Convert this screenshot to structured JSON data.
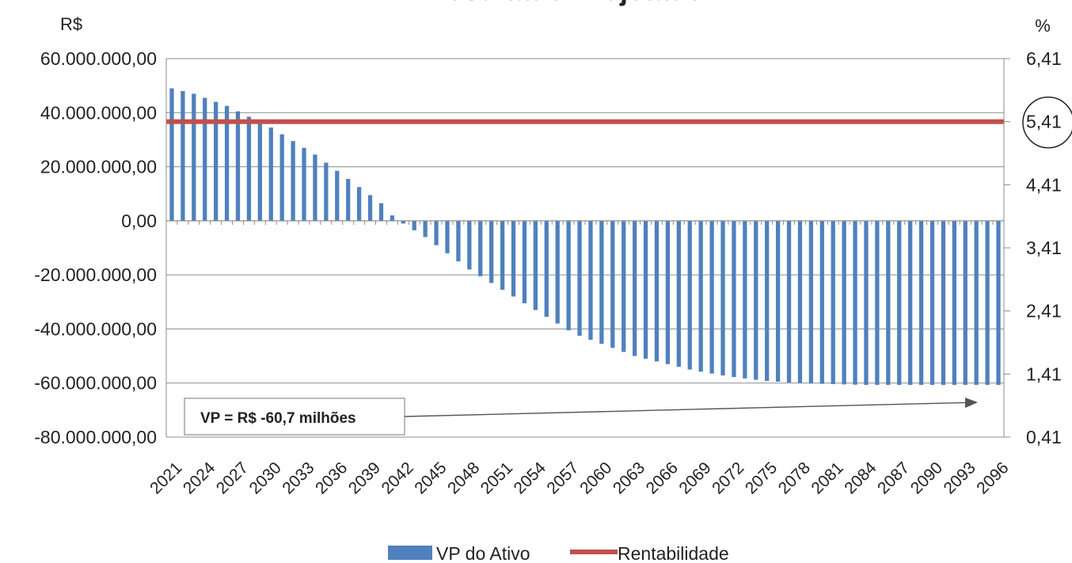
{
  "chart_data": {
    "type": "bar",
    "title": "Resultado Projetado",
    "ylabel": "R$",
    "y2label": "%",
    "ylim": [
      -80000000,
      60000000
    ],
    "y2lim": [
      0.41,
      6.41
    ],
    "yticks": [
      "60.000.000,00",
      "40.000.000,00",
      "20.000.000,00",
      "0,00",
      "-20.000.000,00",
      "-40.000.000,00",
      "-60.000.000,00",
      "-80.000.000,00"
    ],
    "y2ticks": [
      "6,41",
      "5,41",
      "4,41",
      "3,41",
      "2,41",
      "1,41",
      "0,41"
    ],
    "xticks": [
      "2021",
      "2024",
      "2027",
      "2030",
      "2033",
      "2036",
      "2039",
      "2042",
      "2045",
      "2048",
      "2051",
      "2054",
      "2057",
      "2060",
      "2063",
      "2066",
      "2069",
      "2072",
      "2075",
      "2078",
      "2081",
      "2084",
      "2087",
      "2090",
      "2093",
      "2096"
    ],
    "grid": true,
    "legend_position": "bottom",
    "series": [
      {
        "name": "VP do Ativo",
        "type": "bar",
        "axis": "left",
        "color": "#4f81bd",
        "x": [
          2021,
          2022,
          2023,
          2024,
          2025,
          2026,
          2027,
          2028,
          2029,
          2030,
          2031,
          2032,
          2033,
          2034,
          2035,
          2036,
          2037,
          2038,
          2039,
          2040,
          2041,
          2042,
          2043,
          2044,
          2045,
          2046,
          2047,
          2048,
          2049,
          2050,
          2051,
          2052,
          2053,
          2054,
          2055,
          2056,
          2057,
          2058,
          2059,
          2060,
          2061,
          2062,
          2063,
          2064,
          2065,
          2066,
          2067,
          2068,
          2069,
          2070,
          2071,
          2072,
          2073,
          2074,
          2075,
          2076,
          2077,
          2078,
          2079,
          2080,
          2081,
          2082,
          2083,
          2084,
          2085,
          2086,
          2087,
          2088,
          2089,
          2090,
          2091,
          2092,
          2093,
          2094,
          2095,
          2096
        ],
        "values": [
          49000000,
          48000000,
          47000000,
          45500000,
          44000000,
          42500000,
          40500000,
          38500000,
          36500000,
          34500000,
          32000000,
          29500000,
          27000000,
          24500000,
          21500000,
          18500000,
          15500000,
          12500000,
          9500000,
          6500000,
          2000000,
          -1000000,
          -3500000,
          -6000000,
          -9000000,
          -12000000,
          -15000000,
          -18000000,
          -20500000,
          -23000000,
          -25500000,
          -28000000,
          -30500000,
          -33000000,
          -35500000,
          -38000000,
          -40500000,
          -42500000,
          -44000000,
          -45500000,
          -47000000,
          -48500000,
          -50000000,
          -51000000,
          -52000000,
          -53000000,
          -54000000,
          -55000000,
          -55800000,
          -56500000,
          -57200000,
          -57800000,
          -58300000,
          -58800000,
          -59200000,
          -59500000,
          -59800000,
          -60000000,
          -60200000,
          -60300000,
          -60400000,
          -60500000,
          -60600000,
          -60700000,
          -60700000,
          -60700000,
          -60700000,
          -60700000,
          -60700000,
          -60700000,
          -60700000,
          -60700000,
          -60700000,
          -60700000,
          -60700000,
          -60700000
        ]
      },
      {
        "name": "Rentabilidade",
        "type": "line",
        "axis": "right",
        "color": "#c0504d",
        "x": [
          2021,
          2096
        ],
        "values": [
          5.41,
          5.41
        ]
      }
    ],
    "annotations": [
      {
        "text": "VP = R$ -60,7 milhões",
        "target_year": 2096,
        "target_value": -60700000
      }
    ],
    "highlight_right_tick": "5,41"
  }
}
